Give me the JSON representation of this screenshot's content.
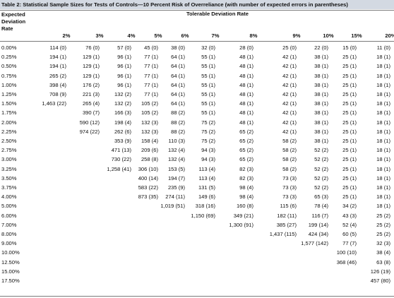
{
  "title": "Table 2: Statistical Sample Sizes for Tests of Controls—10 Percent Risk of Overreliance (with number of expected errors in parentheses)",
  "header": {
    "row_header_lines": [
      "Expected",
      "Deviation",
      "Rate"
    ],
    "spanning_header": "Tolerable Deviation Rate",
    "columns": [
      "2%",
      "3%",
      "4%",
      "5%",
      "6%",
      "7%",
      "8%",
      "9%",
      "10%",
      "15%",
      "20%"
    ]
  },
  "rows": [
    {
      "rate": "0.00%",
      "cells": [
        "114 (0)",
        "76 (0)",
        "57 (0)",
        "45 (0)",
        "38 (0)",
        "32 (0)",
        "28 (0)",
        "25 (0)",
        "22 (0)",
        "15 (0)",
        "11 (0)"
      ]
    },
    {
      "rate": "0.25%",
      "cells": [
        "194 (1)",
        "129 (1)",
        "96 (1)",
        "77 (1)",
        "64 (1)",
        "55 (1)",
        "48 (1)",
        "42 (1)",
        "38 (1)",
        "25 (1)",
        "18 (1)"
      ]
    },
    {
      "rate": "0.50%",
      "cells": [
        "194 (1)",
        "129 (1)",
        "96 (1)",
        "77 (1)",
        "64 (1)",
        "55 (1)",
        "48 (1)",
        "42 (1)",
        "38 (1)",
        "25 (1)",
        "18 (1)"
      ]
    },
    {
      "rate": "0.75%",
      "cells": [
        "265 (2)",
        "129 (1)",
        "96 (1)",
        "77 (1)",
        "64 (1)",
        "55 (1)",
        "48 (1)",
        "42 (1)",
        "38 (1)",
        "25 (1)",
        "18 (1)"
      ]
    },
    {
      "rate": "1.00%",
      "cells": [
        "398 (4)",
        "176 (2)",
        "96 (1)",
        "77 (1)",
        "64 (1)",
        "55 (1)",
        "48 (1)",
        "42 (1)",
        "38 (1)",
        "25 (1)",
        "18 (1)"
      ]
    },
    {
      "rate": "1.25%",
      "cells": [
        "708 (9)",
        "221 (3)",
        "132 (2)",
        "77 (1)",
        "64 (1)",
        "55 (1)",
        "48 (1)",
        "42 (1)",
        "38 (1)",
        "25 (1)",
        "18 (1)"
      ]
    },
    {
      "rate": "1.50%",
      "cells": [
        "1,463 (22)",
        "265 (4)",
        "132 (2)",
        "105 (2)",
        "64 (1)",
        "55 (1)",
        "48 (1)",
        "42 (1)",
        "38 (1)",
        "25 (1)",
        "18 (1)"
      ]
    },
    {
      "rate": "1.75%",
      "cells": [
        "",
        "390 (7)",
        "166 (3)",
        "105 (2)",
        "88 (2)",
        "55 (1)",
        "48 (1)",
        "42 (1)",
        "38 (1)",
        "25 (1)",
        "18 (1)"
      ]
    },
    {
      "rate": "2.00%",
      "cells": [
        "",
        "590 (12)",
        "198 (4)",
        "132 (3)",
        "88 (2)",
        "75 (2)",
        "48 (1)",
        "42 (1)",
        "38 (1)",
        "25 (1)",
        "18 (1)"
      ]
    },
    {
      "rate": "2.25%",
      "cells": [
        "",
        "974 (22)",
        "262 (6)",
        "132 (3)",
        "88 (2)",
        "75 (2)",
        "65 (2)",
        "42 (1)",
        "38 (1)",
        "25 (1)",
        "18 (1)"
      ]
    },
    {
      "rate": "2.50%",
      "cells": [
        "",
        "",
        "353 (9)",
        "158 (4)",
        "110 (3)",
        "75 (2)",
        "65 (2)",
        "58 (2)",
        "38 (1)",
        "25 (1)",
        "18 (1)"
      ]
    },
    {
      "rate": "2.75%",
      "cells": [
        "",
        "",
        "471 (13)",
        "209 (6)",
        "132 (4)",
        "94 (3)",
        "65 (2)",
        "58 (2)",
        "52 (2)",
        "25 (1)",
        "18 (1)"
      ]
    },
    {
      "rate": "3.00%",
      "cells": [
        "",
        "",
        "730 (22)",
        "258 (8)",
        "132 (4)",
        "94 (3)",
        "65 (2)",
        "58 (2)",
        "52 (2)",
        "25 (1)",
        "18 (1)"
      ]
    },
    {
      "rate": "3.25%",
      "cells": [
        "",
        "",
        "1,258 (41)",
        "306 (10)",
        "153 (5)",
        "113 (4)",
        "82 (3)",
        "58 (2)",
        "52 (2)",
        "25 (1)",
        "18 (1)"
      ]
    },
    {
      "rate": "3.50%",
      "cells": [
        "",
        "",
        "",
        "400 (14)",
        "194 (7)",
        "113 (4)",
        "82 (3)",
        "73 (3)",
        "52 (2)",
        "25 (1)",
        "18 (1)"
      ]
    },
    {
      "rate": "3.75%",
      "cells": [
        "",
        "",
        "",
        "583 (22)",
        "235 (9)",
        "131 (5)",
        "98 (4)",
        "73 (3)",
        "52 (2)",
        "25 (1)",
        "18 (1)"
      ]
    },
    {
      "rate": "4.00%",
      "cells": [
        "",
        "",
        "",
        "873 (35)",
        "274 (11)",
        "149 (6)",
        "98 (4)",
        "73 (3)",
        "65 (3)",
        "25 (1)",
        "18 (1)"
      ]
    },
    {
      "rate": "5.00%",
      "cells": [
        "",
        "",
        "",
        "",
        "1,019 (51)",
        "318 (16)",
        "160 (8)",
        "115 (6)",
        "78 (4)",
        "34 (2)",
        "18 (1)"
      ]
    },
    {
      "rate": "6.00%",
      "cells": [
        "",
        "",
        "",
        "",
        "",
        "1,150 (69)",
        "349 (21)",
        "182 (11)",
        "116 (7)",
        "43 (3)",
        "25 (2)"
      ]
    },
    {
      "rate": "7.00%",
      "cells": [
        "",
        "",
        "",
        "",
        "",
        "",
        "1,300 (91)",
        "385 (27)",
        "199 (14)",
        "52 (4)",
        "25 (2)"
      ]
    },
    {
      "rate": "8.00%",
      "cells": [
        "",
        "",
        "",
        "",
        "",
        "",
        "",
        "1,437 (115)",
        "424 (34)",
        "60 (5)",
        "25 (2)"
      ]
    },
    {
      "rate": "9.00%",
      "cells": [
        "",
        "",
        "",
        "",
        "",
        "",
        "",
        "",
        "1,577 (142)",
        "77 (7)",
        "32 (3)"
      ]
    },
    {
      "rate": "10.00%",
      "cells": [
        "",
        "",
        "",
        "",
        "",
        "",
        "",
        "",
        "",
        "100 (10)",
        "38 (4)"
      ]
    },
    {
      "rate": "12.50%",
      "cells": [
        "",
        "",
        "",
        "",
        "",
        "",
        "",
        "",
        "",
        "368 (46)",
        "63 (8)"
      ]
    },
    {
      "rate": "15.00%",
      "cells": [
        "",
        "",
        "",
        "",
        "",
        "",
        "",
        "",
        "",
        "",
        "126 (19)"
      ]
    },
    {
      "rate": "17.50%",
      "cells": [
        "",
        "",
        "",
        "",
        "",
        "",
        "",
        "",
        "",
        "",
        "457 (80)"
      ]
    }
  ]
}
